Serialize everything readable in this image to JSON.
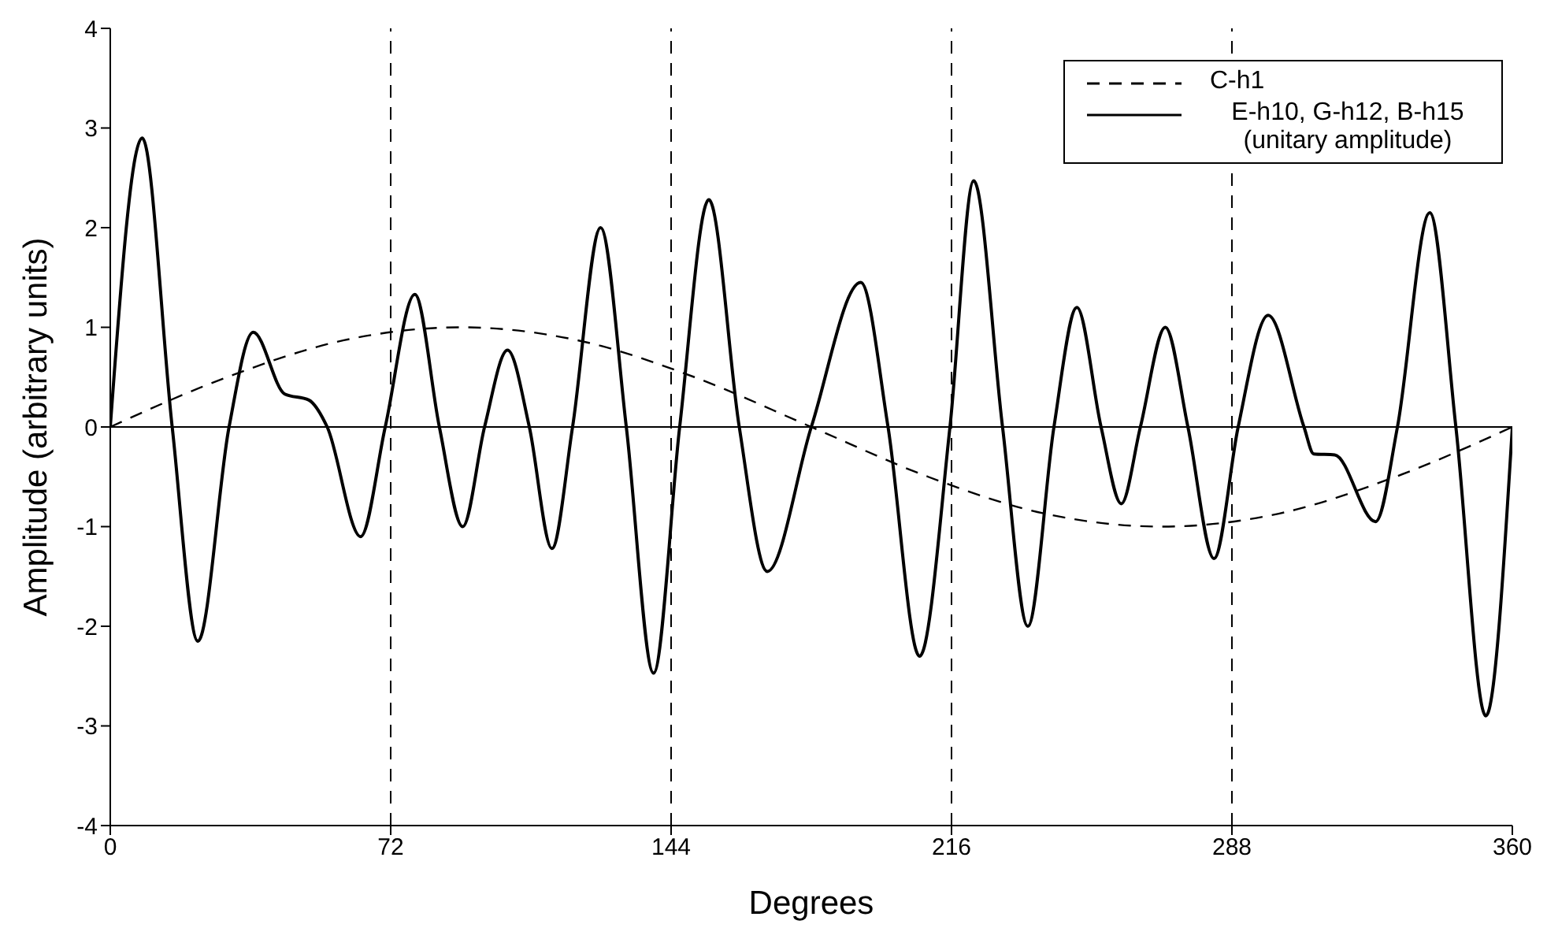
{
  "chart_data": {
    "type": "line",
    "xlabel": "Degrees",
    "ylabel": "Amplitude (arbitrary units)",
    "xlim": [
      0,
      360
    ],
    "xticks": [
      0,
      72,
      144,
      216,
      288,
      360
    ],
    "ylim": [
      -4,
      4
    ],
    "yticks": [
      -4,
      -3,
      -2,
      -1,
      0,
      1,
      2,
      3,
      4
    ],
    "legend": "top right",
    "marker": "none",
    "ref_lines": [
      {
        "axis": "x",
        "value": 72,
        "line_style": "dashed",
        "color": "#000000"
      },
      {
        "axis": "x",
        "value": 144,
        "line_style": "dashed",
        "color": "#000000"
      },
      {
        "axis": "x",
        "value": 216,
        "line_style": "dashed",
        "color": "#000000"
      },
      {
        "axis": "x",
        "value": 288,
        "line_style": "dashed",
        "color": "#000000"
      },
      {
        "axis": "y",
        "value": 0,
        "line_style": "solid",
        "color": "#000000"
      }
    ],
    "series": [
      {
        "name": "C-h1",
        "color": "#000000",
        "line_style": "dashed",
        "x": [
          0,
          30,
          60,
          90,
          120,
          150,
          180,
          210,
          240,
          270,
          300,
          330,
          360
        ],
        "values": [
          0,
          0.5,
          0.87,
          1,
          0.87,
          0.5,
          0,
          -0.5,
          -0.87,
          -1,
          -0.87,
          -0.5,
          0
        ]
      },
      {
        "name": "E-h10, G-h12, B-h15 (unitary amplitude)",
        "color": "#000000",
        "line_style": "solid",
        "x": [
          0,
          8.2,
          15.9,
          22.5,
          30.5,
          36.7,
          44.8,
          51,
          55.7,
          64.3,
          70.6,
          78.2,
          84.5,
          90.5,
          96.1,
          102,
          107.6,
          113.4,
          118.7,
          125.9,
          132.5,
          139.5,
          146.2,
          153.7,
          161.5,
          168.7,
          180,
          192.7,
          199.7,
          207.8,
          215.6,
          221.7,
          229.1,
          235.6,
          242.3,
          248.2,
          254.4,
          259.6,
          264.5,
          270.9,
          276.7,
          283.4,
          289.6,
          297.3,
          306.5,
          309,
          314.4,
          324.9,
          330.5,
          338.8,
          345.5,
          353.2,
          360
        ],
        "values": [
          0,
          2.9,
          0,
          -2.15,
          0,
          0.95,
          0.33,
          0.27,
          0,
          -1.1,
          0,
          1.33,
          0,
          -1,
          0,
          0.77,
          0,
          -1.22,
          0,
          2,
          0,
          -2.47,
          0,
          2.28,
          0,
          -1.45,
          0,
          1.45,
          0,
          -2.3,
          0,
          2.47,
          0,
          -2,
          0,
          1.2,
          0,
          -0.77,
          0,
          1,
          0,
          -1.32,
          0,
          1.12,
          0,
          -0.27,
          -0.28,
          -0.95,
          0,
          2.15,
          0,
          -2.9,
          0
        ]
      }
    ]
  }
}
